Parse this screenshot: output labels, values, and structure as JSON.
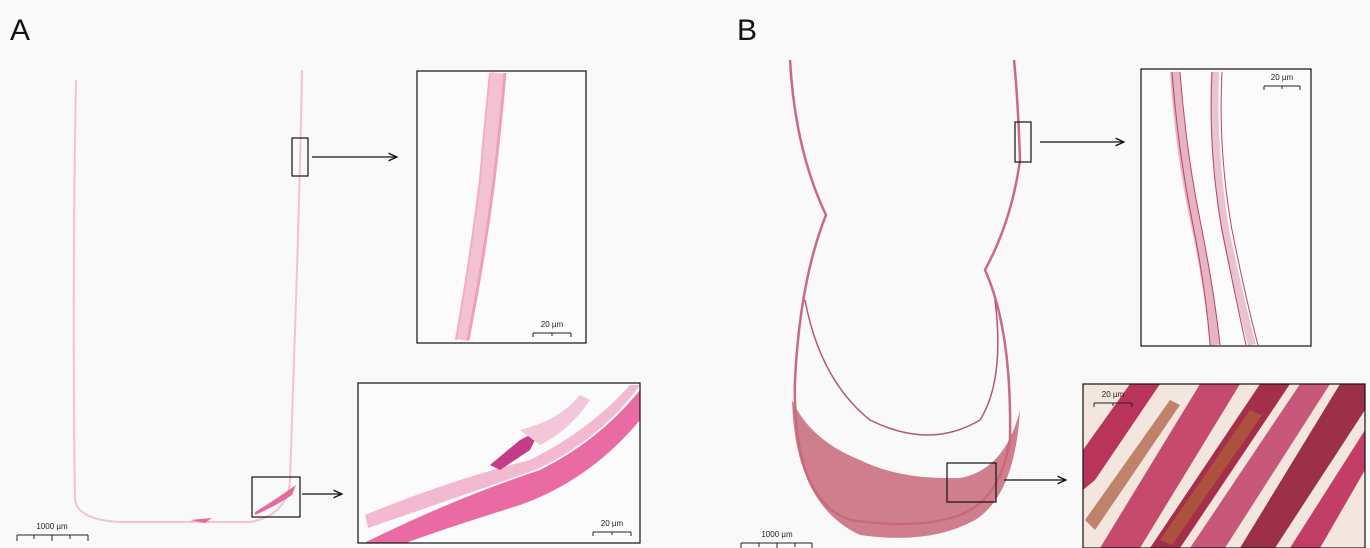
{
  "panels": [
    {
      "label": "A",
      "scale_bar": "1000 µm",
      "insets": [
        {
          "scale_bar": "20 µm"
        },
        {
          "scale_bar": "20 µm"
        }
      ]
    },
    {
      "label": "B",
      "scale_bar": "1000 µm",
      "insets": [
        {
          "scale_bar": "20 µm"
        },
        {
          "scale_bar": "20 µm"
        }
      ]
    }
  ]
}
